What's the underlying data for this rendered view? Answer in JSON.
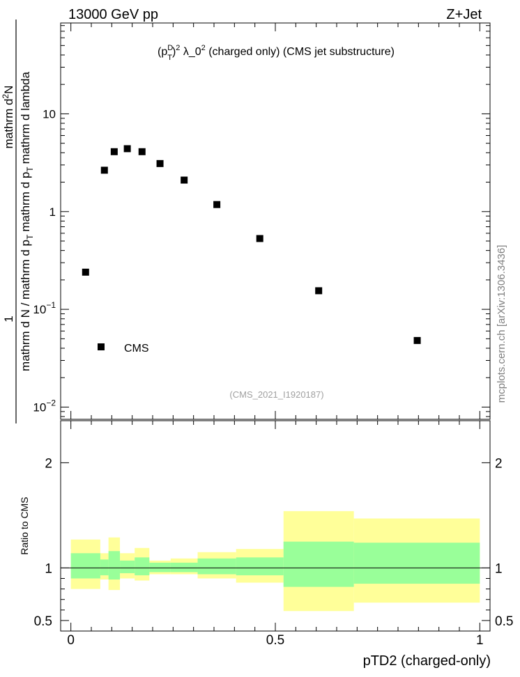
{
  "header": {
    "left": "13000 GeV pp",
    "right": "Z+Jet"
  },
  "title_parts": {
    "open": "(p",
    "sup_d": "D",
    "sub_t": "T",
    "close": ")",
    "sup_2": "2",
    "mid": " λ_0",
    "tail": " (charged only) (CMS jet substructure)"
  },
  "analysis_id": "(CMS_2021_I1920187)",
  "side_label": "mcplots.cern.ch [arXiv:1306.3436]",
  "colors": {
    "marker": "#000000",
    "band_outer": "#ffff99",
    "band_inner": "#99ff99"
  },
  "chart_data": [
    {
      "type": "scatter",
      "panel": "main",
      "ylabel": {
        "one": "1",
        "denominator": "mathrm d N / mathrm d p",
        "denominator_sub": "T",
        "numerator_a": "mathrm d",
        "numerator_sup": "2",
        "numerator_b": "N",
        "numerator_c": "mathrm d p",
        "numerator_sub": "T",
        "numerator_d": "mathrm d lambda"
      },
      "yscale": "log",
      "ylim": [
        0.0075,
        85
      ],
      "xlim": [
        -0.025,
        1.025
      ],
      "y_ticks": [
        {
          "value": 0.01,
          "base": "10",
          "exp": "−2"
        },
        {
          "value": 0.1,
          "base": "10",
          "exp": "−1"
        },
        {
          "value": 1,
          "base": "1",
          "exp": ""
        },
        {
          "value": 10,
          "base": "10",
          "exp": ""
        }
      ],
      "legend": {
        "label": "CMS",
        "placement": "lower-left"
      },
      "series": [
        {
          "name": "CMS",
          "x": [
            0.036,
            0.082,
            0.106,
            0.138,
            0.174,
            0.218,
            0.277,
            0.357,
            0.462,
            0.606,
            0.847
          ],
          "y": [
            0.24,
            2.65,
            4.1,
            4.4,
            4.1,
            3.1,
            2.1,
            1.18,
            0.53,
            0.155,
            0.048
          ]
        }
      ]
    },
    {
      "type": "area",
      "panel": "ratio",
      "ylabel": "Ratio to CMS",
      "ylim": [
        0.4,
        2.4
      ],
      "xlim": [
        -0.025,
        1.025
      ],
      "xlabel": "pTD2 (charged-only)",
      "y_ticks": [
        {
          "value": 0.5,
          "label": "0.5"
        },
        {
          "value": 1,
          "label": "1"
        },
        {
          "value": 2,
          "label": "2"
        }
      ],
      "x_ticks": [
        {
          "value": 0,
          "label": "0"
        },
        {
          "value": 0.5,
          "label": "0.5"
        },
        {
          "value": 1,
          "label": "1"
        }
      ],
      "reference_line": 1,
      "bins": [
        {
          "x0": 0.0,
          "x1": 0.072,
          "outer": [
            0.8,
            1.27
          ],
          "inner": [
            0.9,
            1.14
          ]
        },
        {
          "x0": 0.072,
          "x1": 0.092,
          "outer": [
            0.89,
            1.14
          ],
          "inner": [
            0.93,
            1.08
          ]
        },
        {
          "x0": 0.092,
          "x1": 0.12,
          "outer": [
            0.79,
            1.29
          ],
          "inner": [
            0.89,
            1.16
          ]
        },
        {
          "x0": 0.12,
          "x1": 0.156,
          "outer": [
            0.9,
            1.14
          ],
          "inner": [
            0.95,
            1.07
          ]
        },
        {
          "x0": 0.156,
          "x1": 0.192,
          "outer": [
            0.88,
            1.19
          ],
          "inner": [
            0.93,
            1.1
          ]
        },
        {
          "x0": 0.192,
          "x1": 0.244,
          "outer": [
            0.94,
            1.07
          ],
          "inner": [
            0.96,
            1.05
          ]
        },
        {
          "x0": 0.244,
          "x1": 0.31,
          "outer": [
            0.94,
            1.09
          ],
          "inner": [
            0.96,
            1.05
          ]
        },
        {
          "x0": 0.31,
          "x1": 0.404,
          "outer": [
            0.9,
            1.15
          ],
          "inner": [
            0.94,
            1.09
          ]
        },
        {
          "x0": 0.404,
          "x1": 0.52,
          "outer": [
            0.86,
            1.18
          ],
          "inner": [
            0.93,
            1.1
          ]
        },
        {
          "x0": 0.52,
          "x1": 0.692,
          "outer": [
            0.59,
            1.54
          ],
          "inner": [
            0.82,
            1.25
          ]
        },
        {
          "x0": 0.692,
          "x1": 1.0,
          "outer": [
            0.67,
            1.47
          ],
          "inner": [
            0.85,
            1.24
          ]
        }
      ]
    }
  ]
}
